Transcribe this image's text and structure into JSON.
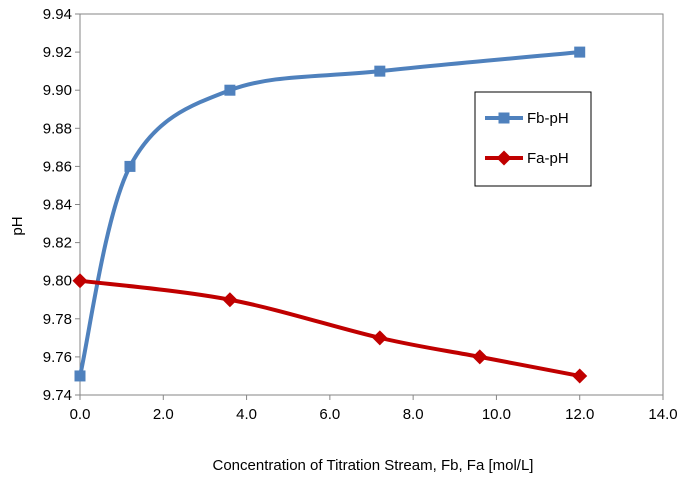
{
  "chart_data": {
    "type": "line",
    "xlabel": "Concentration of Titration Stream, Fb, Fa  [mol/L]",
    "ylabel": "pH",
    "xlim": [
      0,
      14
    ],
    "ylim": [
      9.74,
      9.94
    ],
    "x_ticks": [
      "0.0",
      "2.0",
      "4.0",
      "6.0",
      "8.0",
      "10.0",
      "12.0",
      "14.0"
    ],
    "y_ticks": [
      "9.74",
      "9.76",
      "9.78",
      "9.80",
      "9.82",
      "9.84",
      "9.86",
      "9.88",
      "9.90",
      "9.92",
      "9.94"
    ],
    "grid": false,
    "smooth": true,
    "legend_position": "right",
    "series": [
      {
        "name": "Fb-pH",
        "color": "#4F81BD",
        "marker": "square",
        "x": [
          0.0,
          1.2,
          3.6,
          7.2,
          12.0
        ],
        "y": [
          9.75,
          9.86,
          9.9,
          9.91,
          9.92
        ]
      },
      {
        "name": "Fa-pH",
        "color": "#C00000",
        "marker": "diamond",
        "x": [
          0.0,
          3.6,
          7.2,
          9.6,
          12.0
        ],
        "y": [
          9.8,
          9.79,
          9.77,
          9.76,
          9.75
        ]
      }
    ]
  }
}
